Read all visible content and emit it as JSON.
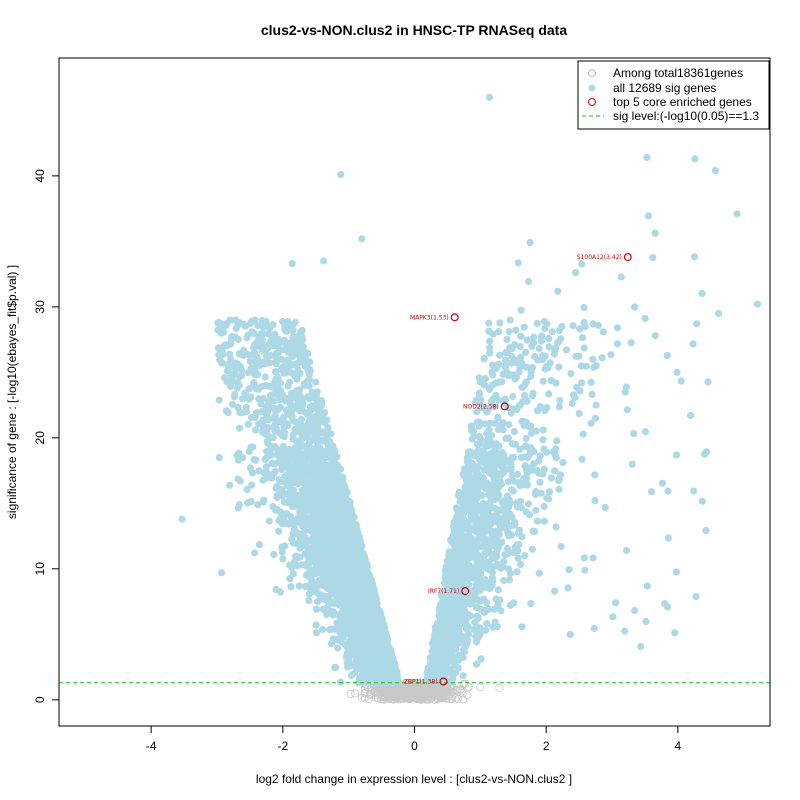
{
  "chart_data": {
    "type": "scatter",
    "title": "clus2-vs-NON.clus2 in HNSC-TP RNASeq data",
    "xlabel": "log2 fold change in expression level : [clus2-vs-NON.clus2 ]",
    "ylabel": "significance of gene : [-log10(ebayes_fit$p.val) ]",
    "xlim": [
      -5.4,
      5.4
    ],
    "ylim": [
      -2,
      49
    ],
    "xticks": [
      -4,
      -2,
      0,
      2,
      4
    ],
    "yticks": [
      0,
      10,
      20,
      30,
      40
    ],
    "sig_level": 1.3,
    "legend": {
      "position": "top-right",
      "items": [
        {
          "label": "Among total18361genes",
          "marker": "open-circle",
          "color": "#bbbbbb"
        },
        {
          "label": "all 12689 sig genes",
          "marker": "filled-circle",
          "color": "#add8e6"
        },
        {
          "label": "top 5 core enriched genes",
          "marker": "open-circle",
          "color": "#ff0000"
        },
        {
          "label": "sig level:(-log10(0.05)==1.3",
          "marker": "dashed-line",
          "color": "#00cc00"
        }
      ]
    },
    "series": [
      {
        "name": "top 5 core enriched genes",
        "points": [
          {
            "label": "S100A12(3.42)",
            "x": 3.24,
            "y": 33.8
          },
          {
            "label": "MAPK3(1.53)",
            "x": 0.61,
            "y": 29.2
          },
          {
            "label": "NOD2(2.58)",
            "x": 1.37,
            "y": 22.4
          },
          {
            "label": "IRF7(1.71)",
            "x": 0.77,
            "y": 8.3
          },
          {
            "label": "ZBP1(1.38)",
            "x": 0.44,
            "y": 1.4
          }
        ]
      }
    ],
    "notable_sig_points": [
      {
        "x": 1.14,
        "y": 46.0
      },
      {
        "x": -1.12,
        "y": 40.1
      },
      {
        "x": 4.26,
        "y": 41.3
      },
      {
        "x": 3.53,
        "y": 41.4
      },
      {
        "x": 4.57,
        "y": 40.4
      },
      {
        "x": 5.21,
        "y": 30.2
      },
      {
        "x": -3.53,
        "y": 13.8
      },
      {
        "x": -2.93,
        "y": 9.7
      },
      {
        "x": 3.98,
        "y": 18.7
      },
      {
        "x": 3.22,
        "y": 11.4
      },
      {
        "x": 2.13,
        "y": 8.3
      },
      {
        "x": -0.8,
        "y": 35.2
      },
      {
        "x": -1.38,
        "y": 33.5
      },
      {
        "x": -1.86,
        "y": 33.3
      },
      {
        "x": 4.9,
        "y": 37.1
      },
      {
        "x": 4.62,
        "y": 29.5
      }
    ],
    "colors": {
      "sig": "#add8e6",
      "nonsig": "#c8c8c8",
      "top": "#cc0000",
      "sigline": "#00cc00"
    }
  }
}
